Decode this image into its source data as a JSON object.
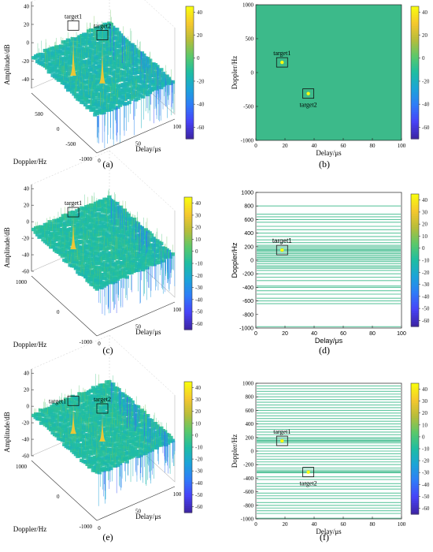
{
  "figure": {
    "colormap": [
      "#3e26a8",
      "#4743f8",
      "#2f7cf8",
      "#1ca4d8",
      "#1ebda2",
      "#5bc86a",
      "#b7bd3a",
      "#f5c72f",
      "#f9fb0e"
    ],
    "background_color": "#3cba8a",
    "panels": [
      {
        "caption": "(a)",
        "kind": "surface3d",
        "serif": true,
        "zlabel": "Amplitude/dB",
        "xlabel": "Delay/μs",
        "ylabel": "Doppler/Hz",
        "zticks": [
          "40",
          "20",
          "0",
          "-20",
          "-40"
        ],
        "xticks": [
          "0",
          "50",
          "100"
        ],
        "yticks": [
          "500",
          "0",
          "-500",
          "-1000"
        ],
        "colorbar_ticks": [
          "40",
          "20",
          "0",
          "-20",
          "-40",
          "-60"
        ]
      },
      {
        "caption": "(b)",
        "kind": "map2d",
        "serif": true,
        "xlabel": "Delay/μs",
        "ylabel": "Doppler/Hz",
        "xticks": [
          "0",
          "20",
          "40",
          "60",
          "80",
          "100"
        ],
        "yticks": [
          "1000",
          "500",
          "0",
          "-500",
          "-1000"
        ],
        "colorbar_ticks": [
          "40",
          "20",
          "0",
          "-20",
          "-40",
          "-60"
        ]
      },
      {
        "caption": "(c)",
        "kind": "surface3d",
        "serif": true,
        "zlabel": "Amplitude/dB",
        "xlabel": "Delay/μs",
        "ylabel": "Doppler/Hz",
        "zticks": [
          "40",
          "20",
          "0",
          "-20",
          "-40",
          "-60"
        ],
        "xticks": [
          "0",
          "50",
          "100"
        ],
        "yticks": [
          "1000",
          "0",
          "-1000"
        ],
        "colorbar_ticks": [
          "40",
          "30",
          "20",
          "10",
          "0",
          "-10",
          "-20",
          "-30",
          "-40",
          "-50",
          "-60"
        ]
      },
      {
        "caption": "(d)",
        "kind": "lines2d",
        "serif": false,
        "xlabel": "Delay/μs",
        "ylabel": "Doppler/Hz",
        "xticks": [
          "0",
          "20",
          "40",
          "60",
          "80",
          "100"
        ],
        "yticks": [
          "1000",
          "800",
          "600",
          "400",
          "200",
          "0",
          "-200",
          "-400",
          "-600",
          "-800",
          "-1000"
        ],
        "colorbar_ticks": [
          "40",
          "30",
          "20",
          "10",
          "0",
          "-10",
          "-20",
          "-30",
          "-40",
          "-50",
          "-60"
        ]
      },
      {
        "caption": "(e)",
        "kind": "surface3d",
        "serif": true,
        "zlabel": "Amplitude/dB",
        "xlabel": "Delay/μs",
        "ylabel": "Doppler/Hz",
        "zticks": [
          "40",
          "20",
          "0",
          "-20",
          "-40",
          "-60"
        ],
        "xticks": [
          "0",
          "50",
          "100"
        ],
        "yticks": [
          "1000",
          "0",
          "-1000"
        ],
        "colorbar_ticks": [
          "40",
          "30",
          "20",
          "10",
          "0",
          "-10",
          "-20",
          "-30",
          "-40",
          "-50",
          "-60"
        ]
      },
      {
        "caption": "(f)",
        "kind": "lines2d",
        "serif": true,
        "xlabel": "Delay/μs",
        "ylabel": "Doppler/Hz",
        "xticks": [
          "0",
          "20",
          "40",
          "60",
          "80",
          "100"
        ],
        "yticks": [
          "1000",
          "800",
          "600",
          "400",
          "200",
          "0",
          "-200",
          "-400",
          "-600",
          "-800",
          "-1000"
        ],
        "colorbar_ticks": [
          "40",
          "30",
          "20",
          "10",
          "0",
          "-10",
          "-20",
          "-30",
          "-40",
          "-50",
          "-60"
        ]
      }
    ]
  },
  "chart_data": [
    {
      "type": "surface3d",
      "panel": "(a)",
      "title": "",
      "xlabel": "Delay/μs",
      "ylabel": "Doppler/Hz",
      "zlabel": "Amplitude/dB",
      "xlim": [
        0,
        100
      ],
      "ylim": [
        -1000,
        1000
      ],
      "zlim": [
        -50,
        45
      ],
      "colorbar_range": [
        -70,
        45
      ],
      "noise_floor_db": -15,
      "targets": [
        {
          "label": "target1",
          "delay": 18,
          "doppler": 150,
          "peak_db": 40
        },
        {
          "label": "target2",
          "delay": 36,
          "doppler": -310,
          "peak_db": 38
        }
      ]
    },
    {
      "type": "heatmap",
      "panel": "(b)",
      "title": "",
      "xlabel": "Delay/μs",
      "ylabel": "Doppler/Hz",
      "xlim": [
        0,
        100
      ],
      "ylim": [
        -1000,
        1000
      ],
      "colorbar_range": [
        -70,
        45
      ],
      "background_db": -10,
      "targets": [
        {
          "label": "target1",
          "delay": 18,
          "doppler": 150
        },
        {
          "label": "target2",
          "delay": 36,
          "doppler": -310
        }
      ]
    },
    {
      "type": "surface3d",
      "panel": "(c)",
      "title": "",
      "xlabel": "Delay/μs",
      "ylabel": "Doppler/Hz",
      "zlabel": "Amplitude/dB",
      "xlim": [
        0,
        100
      ],
      "ylim": [
        -1000,
        1000
      ],
      "zlim": [
        -60,
        45
      ],
      "colorbar_range": [
        -65,
        45
      ],
      "noise_floor_db": -10,
      "targets": [
        {
          "label": "target1",
          "delay": 18,
          "doppler": 150,
          "peak_db": 35
        }
      ]
    },
    {
      "type": "heatmap",
      "panel": "(d)",
      "title": "",
      "xlabel": "Delay/μs",
      "ylabel": "Doppler/Hz",
      "xlim": [
        0,
        100
      ],
      "ylim": [
        -1000,
        1000
      ],
      "colorbar_range": [
        -65,
        45
      ],
      "doppler_lines": [
        -980,
        -640,
        -600,
        -560,
        -500,
        -450,
        -400,
        -380,
        -300,
        -250,
        -200,
        -150,
        -120,
        -100,
        -80,
        -50,
        -20,
        0,
        20,
        40,
        60,
        80,
        100,
        120,
        140,
        150,
        160,
        180,
        200,
        220,
        260,
        300,
        350,
        400,
        450,
        500,
        560,
        600,
        640,
        680,
        800
      ],
      "targets": [
        {
          "label": "target1",
          "delay": 18,
          "doppler": 150
        }
      ]
    },
    {
      "type": "surface3d",
      "panel": "(e)",
      "title": "",
      "xlabel": "Delay/μs",
      "ylabel": "Doppler/Hz",
      "zlabel": "Amplitude/dB",
      "xlim": [
        0,
        100
      ],
      "ylim": [
        -1000,
        1000
      ],
      "zlim": [
        -60,
        45
      ],
      "colorbar_range": [
        -65,
        45
      ],
      "noise_floor_db": -10,
      "targets": [
        {
          "label": "target1",
          "delay": 18,
          "doppler": 150,
          "peak_db": 30
        },
        {
          "label": "target2",
          "delay": 36,
          "doppler": -310,
          "peak_db": 30
        }
      ]
    },
    {
      "type": "heatmap",
      "panel": "(f)",
      "title": "",
      "xlabel": "Delay/μs",
      "ylabel": "Doppler/Hz",
      "xlim": [
        0,
        100
      ],
      "ylim": [
        -1000,
        1000
      ],
      "colorbar_range": [
        -65,
        45
      ],
      "doppler_lines": [
        -990,
        -920,
        -880,
        -840,
        -800,
        -760,
        -700,
        -660,
        -620,
        -560,
        -520,
        -480,
        -420,
        -380,
        -320,
        -310,
        -300,
        -280,
        -250,
        -200,
        -160,
        -120,
        -80,
        -40,
        0,
        40,
        80,
        120,
        140,
        150,
        160,
        180,
        200,
        240,
        280,
        320,
        360,
        400,
        440,
        480,
        520,
        560,
        600,
        640,
        680,
        720,
        760,
        800,
        840,
        880,
        920,
        960
      ],
      "targets": [
        {
          "label": "target1",
          "delay": 18,
          "doppler": 150
        },
        {
          "label": "target2",
          "delay": 36,
          "doppler": -310
        }
      ]
    }
  ]
}
